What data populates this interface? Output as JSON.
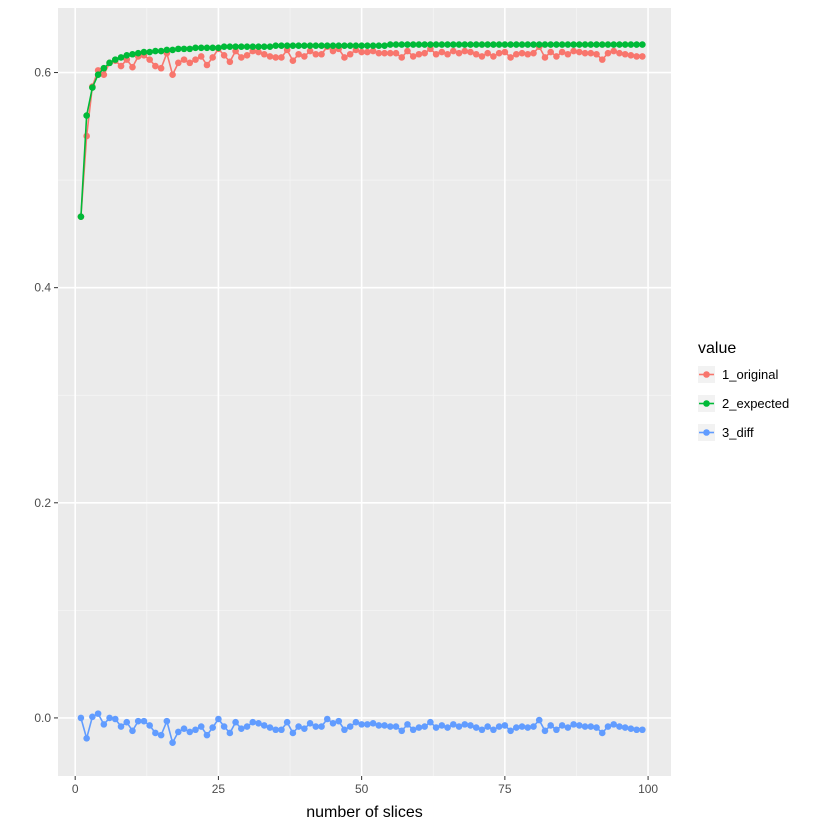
{
  "chart_data": {
    "type": "line",
    "title": "",
    "xlabel": "number of slices",
    "ylabel": "",
    "xlim": [
      -3,
      104
    ],
    "ylim": [
      -0.054,
      0.66
    ],
    "x_ticks": [
      0,
      25,
      50,
      75,
      100
    ],
    "x_tick_labels": [
      "0",
      "25",
      "50",
      "75",
      "100"
    ],
    "y_ticks": [
      0.0,
      0.2,
      0.4,
      0.6
    ],
    "y_tick_labels": [
      "0.0",
      "0.2",
      "0.4",
      "0.6"
    ],
    "grid": true,
    "legend": {
      "title": "value",
      "placement": "right"
    },
    "series": [
      {
        "name": "1_original",
        "color": "#F8766D",
        "x": [
          1,
          2,
          3,
          4,
          5,
          6,
          7,
          8,
          9,
          10,
          11,
          12,
          13,
          14,
          15,
          16,
          17,
          18,
          19,
          20,
          21,
          22,
          23,
          24,
          25,
          26,
          27,
          28,
          29,
          30,
          31,
          32,
          33,
          34,
          35,
          36,
          37,
          38,
          39,
          40,
          41,
          42,
          43,
          44,
          45,
          46,
          47,
          48,
          49,
          50,
          51,
          52,
          53,
          54,
          55,
          56,
          57,
          58,
          59,
          60,
          61,
          62,
          63,
          64,
          65,
          66,
          67,
          68,
          69,
          70,
          71,
          72,
          73,
          74,
          75,
          76,
          77,
          78,
          79,
          80,
          81,
          82,
          83,
          84,
          85,
          86,
          87,
          88,
          89,
          90,
          91,
          92,
          93,
          94,
          95,
          96,
          97,
          98,
          99
        ],
        "values": [
          0.466,
          0.541,
          0.587,
          0.602,
          0.598,
          0.609,
          0.611,
          0.606,
          0.612,
          0.605,
          0.615,
          0.616,
          0.612,
          0.606,
          0.604,
          0.618,
          0.598,
          0.609,
          0.612,
          0.609,
          0.612,
          0.615,
          0.607,
          0.614,
          0.622,
          0.616,
          0.61,
          0.62,
          0.614,
          0.616,
          0.62,
          0.619,
          0.617,
          0.615,
          0.614,
          0.614,
          0.621,
          0.611,
          0.617,
          0.615,
          0.62,
          0.617,
          0.617,
          0.624,
          0.62,
          0.622,
          0.614,
          0.617,
          0.621,
          0.619,
          0.619,
          0.62,
          0.618,
          0.618,
          0.618,
          0.618,
          0.614,
          0.62,
          0.615,
          0.617,
          0.618,
          0.622,
          0.617,
          0.619,
          0.617,
          0.62,
          0.618,
          0.62,
          0.619,
          0.617,
          0.615,
          0.618,
          0.615,
          0.618,
          0.619,
          0.614,
          0.617,
          0.618,
          0.617,
          0.618,
          0.624,
          0.614,
          0.619,
          0.615,
          0.619,
          0.617,
          0.62,
          0.619,
          0.618,
          0.618,
          0.617,
          0.612,
          0.618,
          0.62,
          0.618,
          0.617,
          0.616,
          0.615,
          0.615
        ]
      },
      {
        "name": "2_expected",
        "color": "#00BA38",
        "x": [
          1,
          2,
          3,
          4,
          5,
          6,
          7,
          8,
          9,
          10,
          11,
          12,
          13,
          14,
          15,
          16,
          17,
          18,
          19,
          20,
          21,
          22,
          23,
          24,
          25,
          26,
          27,
          28,
          29,
          30,
          31,
          32,
          33,
          34,
          35,
          36,
          37,
          38,
          39,
          40,
          41,
          42,
          43,
          44,
          45,
          46,
          47,
          48,
          49,
          50,
          51,
          52,
          53,
          54,
          55,
          56,
          57,
          58,
          59,
          60,
          61,
          62,
          63,
          64,
          65,
          66,
          67,
          68,
          69,
          70,
          71,
          72,
          73,
          74,
          75,
          76,
          77,
          78,
          79,
          80,
          81,
          82,
          83,
          84,
          85,
          86,
          87,
          88,
          89,
          90,
          91,
          92,
          93,
          94,
          95,
          96,
          97,
          98,
          99
        ],
        "values": [
          0.466,
          0.56,
          0.586,
          0.598,
          0.604,
          0.609,
          0.612,
          0.614,
          0.616,
          0.617,
          0.618,
          0.619,
          0.619,
          0.62,
          0.62,
          0.621,
          0.621,
          0.622,
          0.622,
          0.622,
          0.623,
          0.623,
          0.623,
          0.623,
          0.623,
          0.624,
          0.624,
          0.624,
          0.624,
          0.624,
          0.624,
          0.624,
          0.624,
          0.624,
          0.625,
          0.625,
          0.625,
          0.625,
          0.625,
          0.625,
          0.625,
          0.625,
          0.625,
          0.625,
          0.625,
          0.625,
          0.625,
          0.625,
          0.625,
          0.625,
          0.625,
          0.625,
          0.625,
          0.625,
          0.626,
          0.626,
          0.626,
          0.626,
          0.626,
          0.626,
          0.626,
          0.626,
          0.626,
          0.626,
          0.626,
          0.626,
          0.626,
          0.626,
          0.626,
          0.626,
          0.626,
          0.626,
          0.626,
          0.626,
          0.626,
          0.626,
          0.626,
          0.626,
          0.626,
          0.626,
          0.626,
          0.626,
          0.626,
          0.626,
          0.626,
          0.626,
          0.626,
          0.626,
          0.626,
          0.626,
          0.626,
          0.626,
          0.626,
          0.626,
          0.626,
          0.626,
          0.626,
          0.626,
          0.626
        ]
      },
      {
        "name": "3_diff",
        "color": "#619CFF",
        "x": [
          1,
          2,
          3,
          4,
          5,
          6,
          7,
          8,
          9,
          10,
          11,
          12,
          13,
          14,
          15,
          16,
          17,
          18,
          19,
          20,
          21,
          22,
          23,
          24,
          25,
          26,
          27,
          28,
          29,
          30,
          31,
          32,
          33,
          34,
          35,
          36,
          37,
          38,
          39,
          40,
          41,
          42,
          43,
          44,
          45,
          46,
          47,
          48,
          49,
          50,
          51,
          52,
          53,
          54,
          55,
          56,
          57,
          58,
          59,
          60,
          61,
          62,
          63,
          64,
          65,
          66,
          67,
          68,
          69,
          70,
          71,
          72,
          73,
          74,
          75,
          76,
          77,
          78,
          79,
          80,
          81,
          82,
          83,
          84,
          85,
          86,
          87,
          88,
          89,
          90,
          91,
          92,
          93,
          94,
          95,
          96,
          97,
          98,
          99
        ],
        "values": [
          0.0,
          -0.019,
          0.001,
          0.004,
          -0.006,
          0.0,
          -0.001,
          -0.008,
          -0.004,
          -0.012,
          -0.003,
          -0.003,
          -0.007,
          -0.014,
          -0.016,
          -0.003,
          -0.023,
          -0.013,
          -0.01,
          -0.013,
          -0.011,
          -0.008,
          -0.016,
          -0.009,
          -0.001,
          -0.008,
          -0.014,
          -0.004,
          -0.01,
          -0.008,
          -0.004,
          -0.005,
          -0.007,
          -0.009,
          -0.011,
          -0.011,
          -0.004,
          -0.014,
          -0.008,
          -0.01,
          -0.005,
          -0.008,
          -0.008,
          -0.001,
          -0.005,
          -0.003,
          -0.011,
          -0.008,
          -0.004,
          -0.006,
          -0.006,
          -0.005,
          -0.007,
          -0.007,
          -0.008,
          -0.008,
          -0.012,
          -0.006,
          -0.011,
          -0.009,
          -0.008,
          -0.004,
          -0.009,
          -0.007,
          -0.009,
          -0.006,
          -0.008,
          -0.006,
          -0.007,
          -0.009,
          -0.011,
          -0.008,
          -0.011,
          -0.008,
          -0.007,
          -0.012,
          -0.009,
          -0.008,
          -0.009,
          -0.008,
          -0.002,
          -0.012,
          -0.007,
          -0.011,
          -0.007,
          -0.009,
          -0.006,
          -0.007,
          -0.008,
          -0.008,
          -0.009,
          -0.014,
          -0.008,
          -0.006,
          -0.008,
          -0.009,
          -0.01,
          -0.011,
          -0.011
        ]
      }
    ]
  }
}
